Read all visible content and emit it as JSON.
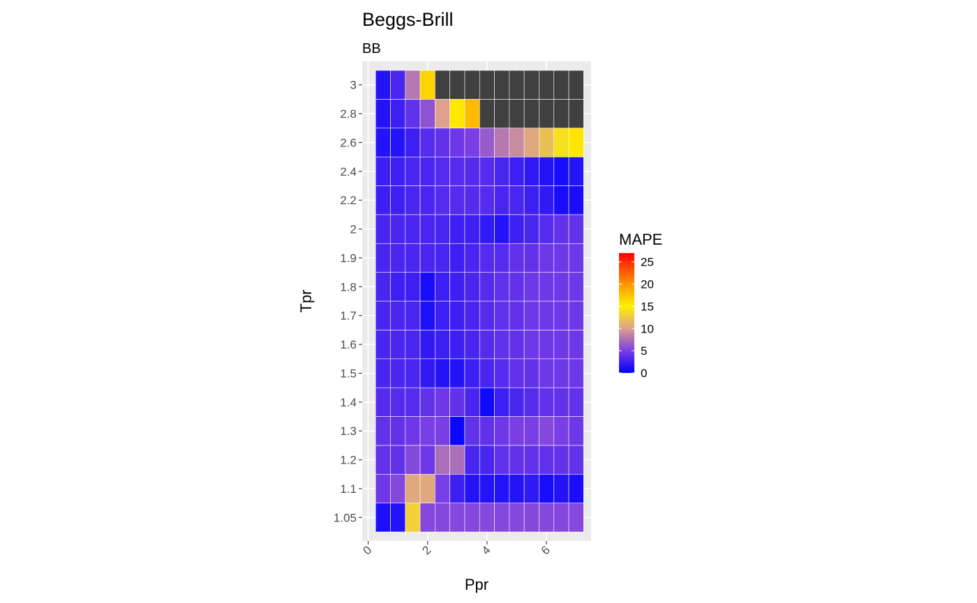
{
  "chart_data": {
    "type": "heatmap",
    "title": "Beggs-Brill",
    "subtitle": "BB",
    "xlabel": "Ppr",
    "ylabel": "Tpr",
    "x_ticks": [
      "0",
      "2",
      "4",
      "6"
    ],
    "x_tick_values": [
      0,
      2,
      4,
      6
    ],
    "xlim": [
      -0.2,
      7.5
    ],
    "x": [
      0.5,
      1.0,
      1.5,
      2.0,
      2.5,
      3.0,
      3.5,
      4.0,
      4.5,
      5.0,
      5.5,
      6.0,
      6.5,
      7.0
    ],
    "y_categories": [
      "1.05",
      "1.1",
      "1.2",
      "1.3",
      "1.4",
      "1.5",
      "1.6",
      "1.7",
      "1.8",
      "1.9",
      "2",
      "2.2",
      "2.4",
      "2.6",
      "2.8",
      "3"
    ],
    "legend": {
      "title": "MAPE",
      "labels": [
        "0",
        "5",
        "10",
        "15",
        "20",
        "25"
      ],
      "values": [
        0,
        5,
        10,
        15,
        20,
        25
      ],
      "range": [
        0,
        27
      ],
      "na_color": "#404040",
      "placement": "right"
    },
    "grid": true,
    "values": [
      [
        1.2,
        1.5,
        13,
        5.5,
        5.5,
        5.5,
        5.5,
        5.5,
        5.5,
        5.5,
        5.5,
        5.5,
        5.5,
        5.5
      ],
      [
        4.5,
        5.5,
        10.5,
        10.5,
        5,
        2.5,
        1.5,
        1.5,
        1.5,
        1.5,
        2,
        1,
        1.5,
        1
      ],
      [
        4,
        4,
        5.5,
        4.5,
        7.5,
        7.5,
        3,
        3,
        4,
        4,
        4,
        4,
        4,
        4
      ],
      [
        4,
        4,
        4.5,
        5,
        5,
        0.5,
        4,
        4,
        4.5,
        5,
        5,
        5.5,
        5,
        4.5
      ],
      [
        3.5,
        3.5,
        3.5,
        4,
        4.5,
        4,
        3,
        0.8,
        2.5,
        3,
        3.5,
        4,
        4,
        4
      ],
      [
        3,
        3,
        3,
        2,
        1.5,
        1.5,
        2.5,
        3,
        3.5,
        4,
        4,
        4.5,
        4.5,
        4.5
      ],
      [
        3,
        3,
        3,
        2,
        2.5,
        2.5,
        3,
        3.5,
        4,
        4,
        4.5,
        4.5,
        4.5,
        4.5
      ],
      [
        3,
        3,
        3,
        1.2,
        2.5,
        2.5,
        3,
        3.5,
        4,
        4,
        4.5,
        4.5,
        4.5,
        4.5
      ],
      [
        3,
        2.5,
        2.5,
        1,
        2.5,
        2.5,
        3,
        3.5,
        4,
        4,
        4.5,
        4.5,
        4.5,
        4.5
      ],
      [
        3,
        3,
        3,
        3,
        3,
        2.5,
        3,
        3.5,
        3.5,
        4,
        4,
        4.5,
        4.5,
        4.5
      ],
      [
        3,
        3,
        3,
        3,
        3,
        2.5,
        2.5,
        2,
        1.5,
        2.5,
        3,
        3.5,
        4,
        4
      ],
      [
        2.5,
        2.5,
        3,
        3,
        3.5,
        3.5,
        3.5,
        3.5,
        3,
        3,
        2.5,
        2,
        1,
        1
      ],
      [
        2.5,
        2.5,
        3,
        3,
        3.5,
        3.5,
        3.5,
        3.5,
        3,
        2.5,
        2,
        1.5,
        1,
        1.5
      ],
      [
        1.5,
        1.5,
        2.5,
        3.5,
        4,
        4.5,
        5,
        6.5,
        8,
        9,
        10.5,
        12,
        14,
        15.5
      ],
      [
        1.5,
        2.5,
        4,
        6,
        10,
        15.5,
        18,
        null,
        null,
        null,
        null,
        null,
        null,
        null
      ],
      [
        1.5,
        3,
        8,
        16.5,
        null,
        null,
        null,
        null,
        null,
        null,
        null,
        null,
        null,
        null
      ]
    ]
  }
}
